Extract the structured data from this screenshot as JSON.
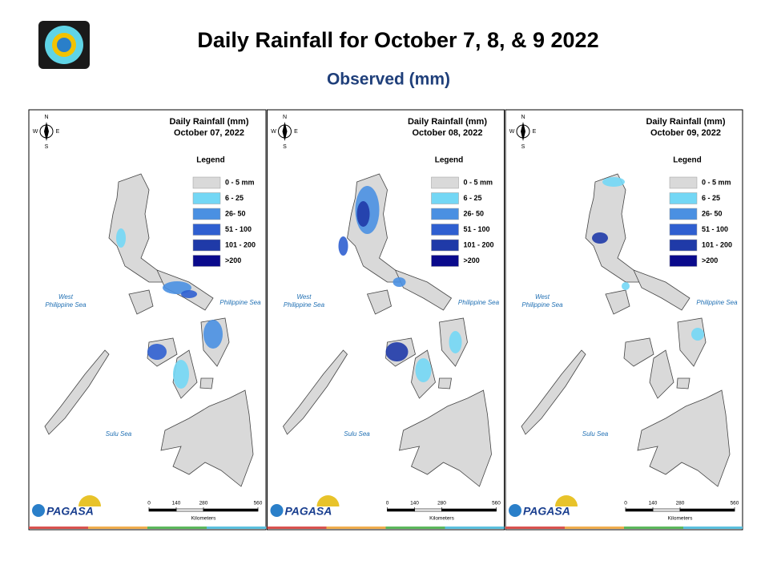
{
  "header": {
    "title": "Daily Rainfall for October 7, 8, & 9 2022",
    "subtitle": "Observed (mm)"
  },
  "panels": [
    {
      "heading": "Daily Rainfall (mm)",
      "date": "October 07, 2022",
      "legend": {
        "title": "Legend",
        "items": [
          {
            "label": "0 - 5 mm",
            "color": "#d9d9d9"
          },
          {
            "label": "6 - 25",
            "color": "#73d7f5"
          },
          {
            "label": "26- 50",
            "color": "#4a90e2"
          },
          {
            "label": "51 - 100",
            "color": "#2f5fd0"
          },
          {
            "label": "101 - 200",
            "color": "#1f3aa8"
          },
          {
            "label": ">200",
            "color": "#0a0a8c"
          }
        ]
      },
      "seas": [
        "West Philippine Sea",
        "Philippine Sea",
        "Sulu Sea"
      ],
      "scale": {
        "ticks": [
          0,
          140,
          280,
          560
        ],
        "unit": "Kilometers"
      },
      "compass": [
        "N",
        "S",
        "E",
        "W"
      ],
      "logo": "PAGASA"
    },
    {
      "heading": "Daily Rainfall (mm)",
      "date": "October 08, 2022",
      "legend": {
        "title": "Legend",
        "items": [
          {
            "label": "0 - 5 mm",
            "color": "#d9d9d9"
          },
          {
            "label": "6 - 25",
            "color": "#73d7f5"
          },
          {
            "label": "26- 50",
            "color": "#4a90e2"
          },
          {
            "label": "51 - 100",
            "color": "#2f5fd0"
          },
          {
            "label": "101 - 200",
            "color": "#1f3aa8"
          },
          {
            "label": ">200",
            "color": "#0a0a8c"
          }
        ]
      },
      "seas": [
        "West Philippine Sea",
        "Philippine Sea",
        "Sulu Sea"
      ],
      "scale": {
        "ticks": [
          0,
          140,
          280,
          560
        ],
        "unit": "Kilometers"
      },
      "compass": [
        "N",
        "S",
        "E",
        "W"
      ],
      "logo": "PAGASA"
    },
    {
      "heading": "Daily Rainfall (mm)",
      "date": "October 09, 2022",
      "legend": {
        "title": "Legend",
        "items": [
          {
            "label": "0 - 5 mm",
            "color": "#d9d9d9"
          },
          {
            "label": "6 - 25",
            "color": "#73d7f5"
          },
          {
            "label": "26- 50",
            "color": "#4a90e2"
          },
          {
            "label": "51 - 100",
            "color": "#2f5fd0"
          },
          {
            "label": "101 - 200",
            "color": "#1f3aa8"
          },
          {
            "label": ">200",
            "color": "#0a0a8c"
          }
        ]
      },
      "seas": [
        "West Philippine Sea",
        "Philippine Sea",
        "Sulu Sea"
      ],
      "scale": {
        "ticks": [
          0,
          140,
          280,
          560
        ],
        "unit": "Kilometers"
      },
      "compass": [
        "N",
        "S",
        "E",
        "W"
      ],
      "logo": "PAGASA"
    }
  ]
}
